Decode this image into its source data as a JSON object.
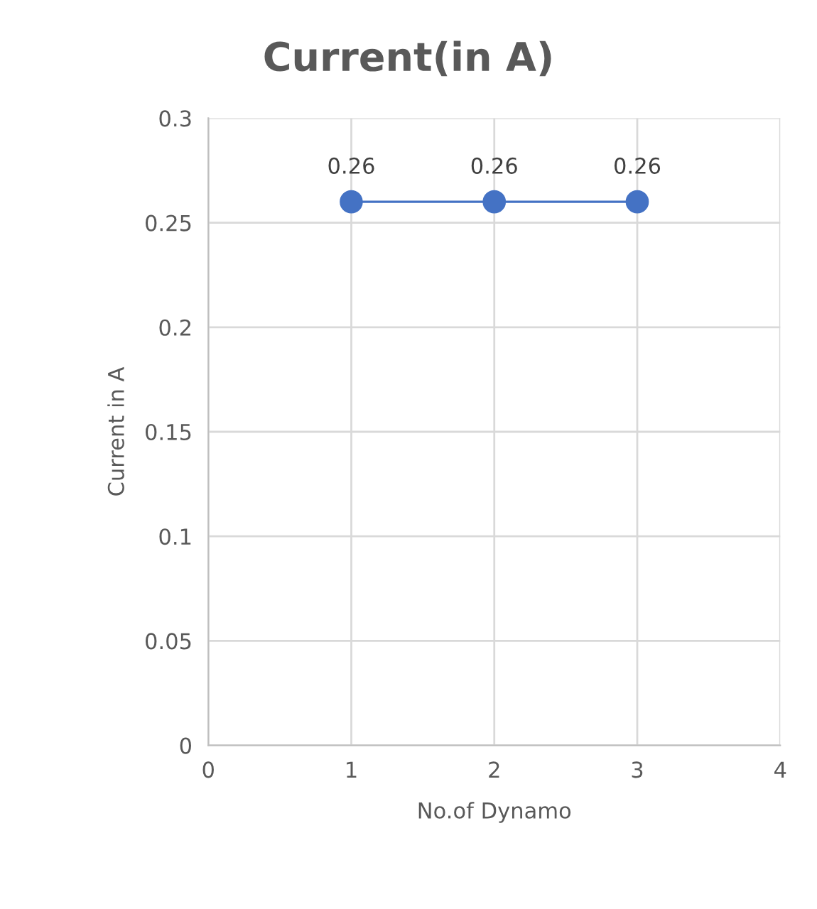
{
  "chart_data": {
    "type": "line",
    "title": "Current(in A)",
    "xlabel": "No.of Dynamo",
    "ylabel": "Current in A",
    "x": [
      1,
      2,
      3
    ],
    "series": [
      {
        "color": "#4472c4",
        "values": [
          0.26,
          0.26,
          0.26
        ]
      }
    ],
    "xlim": [
      0,
      4
    ],
    "xticks": [
      0,
      1,
      2,
      3,
      4
    ],
    "ylim": [
      0,
      0.3
    ],
    "yticks": [
      0,
      0.05,
      0.1,
      0.15,
      0.2,
      0.25,
      0.3
    ],
    "grid": true,
    "marker": "circle",
    "line_style": "solid",
    "data_labels": true,
    "legend": false
  }
}
